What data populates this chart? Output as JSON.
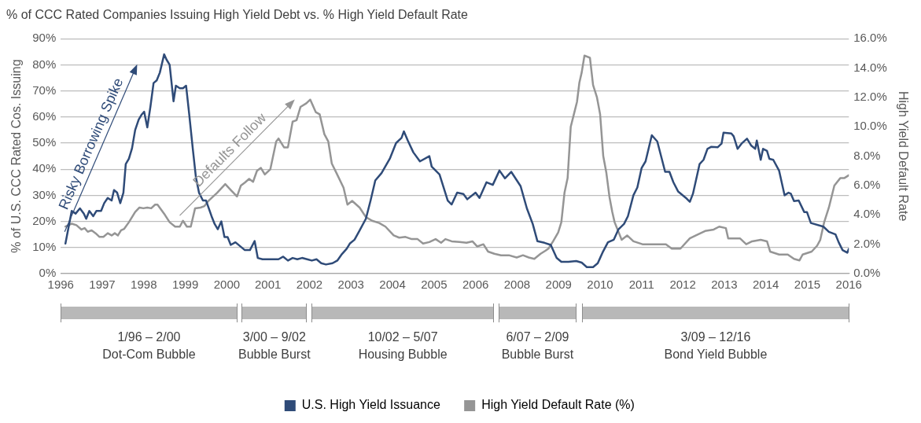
{
  "chart_data": {
    "type": "line",
    "title": "% of CCC Rated Companies Issuing High Yield Debt vs. % High Yield Default Rate",
    "ylabel": "% of U.S. CCC Rated Cos. Issuing",
    "y2label": "High Yield Default Rate",
    "xlim": [
      1995.88,
      2016
    ],
    "xticks": [
      {
        "value": 1995.88,
        "label": "1996"
      },
      {
        "value": 1996.94,
        "label": "1997"
      },
      {
        "value": 1998,
        "label": "1998"
      },
      {
        "value": 1999.06,
        "label": "1999"
      },
      {
        "value": 2000.12,
        "label": "2000"
      },
      {
        "value": 2001.17,
        "label": "2001"
      },
      {
        "value": 2002.23,
        "label": "2002"
      },
      {
        "value": 2003.29,
        "label": "2003"
      },
      {
        "value": 2004.35,
        "label": "2004"
      },
      {
        "value": 2005.41,
        "label": "2005"
      },
      {
        "value": 2006.47,
        "label": "2006"
      },
      {
        "value": 2007.53,
        "label": "2008"
      },
      {
        "value": 2008.59,
        "label": "2009"
      },
      {
        "value": 2009.65,
        "label": "2010"
      },
      {
        "value": 2010.71,
        "label": "2011"
      },
      {
        "value": 2011.76,
        "label": "2012"
      },
      {
        "value": 2012.82,
        "label": "2013"
      },
      {
        "value": 2013.88,
        "label": "2014"
      },
      {
        "value": 2014.94,
        "label": "2015"
      },
      {
        "value": 2016,
        "label": "2016"
      }
    ],
    "ylim": [
      0,
      90
    ],
    "yticks": [
      {
        "value": 0,
        "label": "0%"
      },
      {
        "value": 10,
        "label": "10%"
      },
      {
        "value": 20,
        "label": "20%"
      },
      {
        "value": 30,
        "label": "30%"
      },
      {
        "value": 40,
        "label": "40%"
      },
      {
        "value": 50,
        "label": "50%"
      },
      {
        "value": 60,
        "label": "60%"
      },
      {
        "value": 70,
        "label": "70%"
      },
      {
        "value": 80,
        "label": "80%"
      },
      {
        "value": 90,
        "label": "90%"
      }
    ],
    "y2lim": [
      0,
      16
    ],
    "y2ticks": [
      {
        "value": 0,
        "label": "0.0%"
      },
      {
        "value": 2,
        "label": "2.0%"
      },
      {
        "value": 4,
        "label": "4.0%"
      },
      {
        "value": 6,
        "label": "6.0%"
      },
      {
        "value": 8,
        "label": "8.0%"
      },
      {
        "value": 10,
        "label": "10.0%"
      },
      {
        "value": 12,
        "label": "12.0%"
      },
      {
        "value": 14,
        "label": "14.0%"
      },
      {
        "value": 16,
        "label": "16.0%"
      }
    ],
    "grid": "y",
    "legend": "bottom",
    "marker": "none",
    "series": [
      {
        "name": "U.S. High Yield Issuance",
        "color": "#2f4b78",
        "axis": "y",
        "x": [
          1996,
          1996.16,
          1996.26,
          1996.37,
          1996.47,
          1996.53,
          1996.61,
          1996.71,
          1996.79,
          1996.91,
          1996.99,
          1997.08,
          1997.18,
          1997.24,
          1997.32,
          1997.4,
          1997.48,
          1997.54,
          1997.62,
          1997.7,
          1997.78,
          1997.87,
          1997.95,
          1998.01,
          1998.09,
          1998.17,
          1998.25,
          1998.33,
          1998.41,
          1998.52,
          1998.58,
          1998.66,
          1998.76,
          1998.82,
          1998.92,
          1999,
          1999.08,
          1999.16,
          1999.25,
          1999.33,
          1999.41,
          1999.51,
          1999.59,
          1999.73,
          1999.81,
          1999.89,
          1999.98,
          2000.06,
          2000.14,
          2000.22,
          2000.34,
          2000.46,
          2000.58,
          2000.71,
          2000.83,
          2000.91,
          2001.03,
          2001.23,
          2001.44,
          2001.56,
          2001.68,
          2001.8,
          2001.92,
          2002.04,
          2002.17,
          2002.29,
          2002.41,
          2002.53,
          2002.65,
          2002.82,
          2002.94,
          2003.06,
          2003.18,
          2003.26,
          2003.38,
          2003.51,
          2003.67,
          2003.79,
          2003.91,
          2004.07,
          2004.28,
          2004.44,
          2004.58,
          2004.64,
          2004.74,
          2004.88,
          2005.05,
          2005.29,
          2005.35,
          2005.55,
          2005.76,
          2005.86,
          2006,
          2006.16,
          2006.26,
          2006.47,
          2006.57,
          2006.75,
          2006.91,
          2007.08,
          2007.22,
          2007.38,
          2007.62,
          2007.78,
          2007.93,
          2008.05,
          2008.23,
          2008.39,
          2008.54,
          2008.66,
          2008.84,
          2009.04,
          2009.18,
          2009.31,
          2009.47,
          2009.59,
          2009.71,
          2009.85,
          2010,
          2010.12,
          2010.26,
          2010.36,
          2010.5,
          2010.6,
          2010.71,
          2010.81,
          2010.97,
          2011.11,
          2011.31,
          2011.42,
          2011.52,
          2011.64,
          2011.84,
          2011.94,
          2012.02,
          2012.19,
          2012.29,
          2012.39,
          2012.49,
          2012.65,
          2012.75,
          2012.8,
          2013,
          2013.06,
          2013.16,
          2013.26,
          2013.4,
          2013.51,
          2013.61,
          2013.65,
          2013.75,
          2013.81,
          2013.91,
          2013.97,
          2014.07,
          2014.22,
          2014.36,
          2014.46,
          2014.52,
          2014.6,
          2014.72,
          2014.86,
          2014.93,
          2015.03,
          2015.35,
          2015.49,
          2015.66,
          2015.74,
          2015.84,
          2015.96,
          2016
        ],
        "values": [
          11.5,
          24,
          23,
          25,
          23,
          21,
          24,
          22,
          24,
          24,
          27,
          29,
          28,
          32,
          31,
          27,
          31,
          42,
          44,
          48,
          55,
          59,
          61,
          62,
          56,
          64,
          73,
          74,
          77,
          84,
          82,
          80,
          66,
          72,
          71,
          71,
          72,
          61,
          48,
          37,
          31,
          28,
          28,
          22,
          19,
          17,
          20,
          14,
          14,
          11,
          12,
          10.5,
          9,
          9,
          12.5,
          6,
          5.5,
          5.5,
          5.5,
          6.5,
          5,
          6,
          5.5,
          6,
          5.5,
          5,
          5.5,
          4,
          3.5,
          4,
          5,
          7.5,
          9.5,
          11.5,
          13,
          16.5,
          21,
          28,
          35.7,
          38.5,
          44,
          50,
          52,
          54.5,
          51,
          46.5,
          43,
          45,
          41,
          38,
          28,
          26.5,
          31,
          30.5,
          28.5,
          31,
          29,
          35,
          34,
          39.5,
          36.5,
          39,
          33.5,
          25,
          19,
          12.4,
          11.8,
          11,
          6,
          4.5,
          4.5,
          4.8,
          4.2,
          2.5,
          2.5,
          4,
          8,
          12,
          13,
          17,
          19,
          22,
          30,
          33,
          40.5,
          43,
          53,
          50.6,
          39,
          39,
          35,
          31.5,
          29,
          27.5,
          30.6,
          42,
          43.6,
          47.8,
          48.6,
          48.4,
          49.8,
          54,
          53.7,
          52.6,
          47.8,
          49.8,
          51.7,
          49,
          47.8,
          51,
          43.6,
          47.8,
          47,
          44,
          43.6,
          39.4,
          30,
          31,
          30.6,
          27.8,
          28,
          23.6,
          23.6,
          19.4,
          18,
          16,
          15,
          12,
          9,
          8,
          9.5
        ]
      },
      {
        "name": "High Yield Default Rate (%)",
        "color": "#959595",
        "axis": "y2",
        "x": [
          1996,
          1996.16,
          1996.28,
          1996.41,
          1996.49,
          1996.57,
          1996.67,
          1996.77,
          1996.87,
          1996.97,
          1997.08,
          1997.18,
          1997.26,
          1997.34,
          1997.42,
          1997.5,
          1997.62,
          1997.78,
          1997.89,
          1997.99,
          1998.09,
          1998.19,
          1998.29,
          1998.35,
          1998.54,
          1998.66,
          1998.8,
          1998.92,
          1999,
          1999.1,
          1999.2,
          1999.31,
          1999.45,
          1999.55,
          1999.65,
          1999.75,
          1999.87,
          2000.08,
          2000.22,
          2000.38,
          2000.48,
          2000.58,
          2000.69,
          2000.79,
          2000.89,
          2000.99,
          2001.09,
          2001.23,
          2001.38,
          2001.44,
          2001.58,
          2001.68,
          2001.8,
          2001.9,
          2002,
          2002.15,
          2002.25,
          2002.39,
          2002.49,
          2002.61,
          2002.71,
          2002.8,
          2002.92,
          2003.1,
          2003.2,
          2003.32,
          2003.51,
          2003.67,
          2003.83,
          2004.01,
          2004.17,
          2004.38,
          2004.52,
          2004.68,
          2004.84,
          2004.99,
          2005.13,
          2005.29,
          2005.45,
          2005.59,
          2005.7,
          2005.86,
          2006.06,
          2006.24,
          2006.39,
          2006.51,
          2006.67,
          2006.79,
          2006.95,
          2007.12,
          2007.32,
          2007.52,
          2007.68,
          2007.83,
          2007.97,
          2008.13,
          2008.25,
          2008.33,
          2008.45,
          2008.58,
          2008.66,
          2008.74,
          2008.82,
          2008.9,
          2008.98,
          2009.06,
          2009.12,
          2009.18,
          2009.25,
          2009.39,
          2009.47,
          2009.57,
          2009.65,
          2009.73,
          2009.81,
          2009.89,
          2009.96,
          2010.02,
          2010.2,
          2010.34,
          2010.5,
          2010.73,
          2011.33,
          2011.48,
          2011.7,
          2011.94,
          2012.17,
          2012.33,
          2012.55,
          2012.69,
          2012.86,
          2012.92,
          2013.22,
          2013.38,
          2013.53,
          2013.75,
          2013.91,
          2013.99,
          2014.22,
          2014.44,
          2014.6,
          2014.74,
          2014.82,
          2015.05,
          2015.19,
          2015.27,
          2015.37,
          2015.49,
          2015.63,
          2015.78,
          2015.88,
          2016
        ],
        "values": [
          3.2,
          3.4,
          3.3,
          3,
          3.1,
          2.85,
          2.95,
          2.75,
          2.5,
          2.5,
          2.75,
          2.6,
          2.75,
          2.6,
          2.95,
          3.05,
          3.5,
          4.2,
          4.5,
          4.45,
          4.5,
          4.45,
          4.7,
          4.7,
          4,
          3.5,
          3.2,
          3.2,
          3.6,
          3.2,
          3.2,
          4.45,
          4.5,
          4.6,
          4.95,
          5.2,
          5.5,
          6.1,
          5.7,
          5.25,
          6,
          6.2,
          6.45,
          6.25,
          7,
          7.2,
          6.75,
          7.1,
          9,
          9.2,
          8.6,
          8.6,
          10.35,
          10.45,
          11.35,
          11.6,
          11.85,
          11,
          10.85,
          9.5,
          9,
          7.5,
          6.85,
          5.85,
          4.7,
          4.95,
          4.5,
          3.85,
          3.6,
          3.45,
          3.2,
          2.6,
          2.45,
          2.5,
          2.35,
          2.35,
          2.05,
          2.15,
          2.35,
          2.1,
          2.35,
          2.2,
          2.15,
          2.1,
          2.2,
          1.85,
          2,
          1.5,
          1.35,
          1.25,
          1.25,
          1.1,
          1.25,
          1.1,
          1,
          1.35,
          1.55,
          1.7,
          2.2,
          2.8,
          3.5,
          5.5,
          6.5,
          10,
          10.85,
          11.7,
          13,
          13.7,
          14.85,
          14.7,
          12.85,
          12,
          10.85,
          8,
          6.85,
          5.2,
          4.2,
          3.5,
          2.3,
          2.6,
          2.2,
          2,
          2,
          1.7,
          1.7,
          2.4,
          2.7,
          2.9,
          3,
          3.2,
          3.1,
          2.4,
          2.4,
          2,
          2.2,
          2.3,
          2.2,
          1.5,
          1.3,
          1.3,
          1,
          0.9,
          1.3,
          1.5,
          1.9,
          2.3,
          3.5,
          4.5,
          6,
          6.5,
          6.5,
          6.7
        ]
      }
    ],
    "annotations": [
      "Risky Borrowing Spike",
      "Defaults Follow",
      "1/96 – 2/00\nDot-Com Bubble",
      "3/00 – 9/02\nBubble Burst",
      "10/02 – 5/07\nHousing Bubble",
      "6/07 – 2/09\nBubble Burst",
      "3/09 – 12/16\nBond Yield Bubble"
    ]
  }
}
